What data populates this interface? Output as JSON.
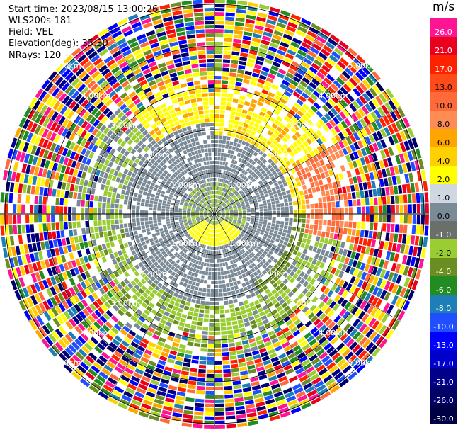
{
  "header": {
    "start_time": "Start time: 2023/08/15 13:00:26",
    "station": "WLS200s-181",
    "field": "Field: VEL",
    "elevation": "Elevation(deg): 35.30",
    "nrays": "NRays: 120"
  },
  "colorbar": {
    "unit": "m/s",
    "entries": [
      {
        "label": "26.0",
        "color": "#ff1493"
      },
      {
        "label": "21.0",
        "color": "#e8001e"
      },
      {
        "label": "17.0",
        "color": "#ff2200"
      },
      {
        "label": "13.0",
        "color": "#ff4a1a"
      },
      {
        "label": "10.0",
        "color": "#ff6a3a"
      },
      {
        "label": "8.0",
        "color": "#ff8c55"
      },
      {
        "label": "6.0",
        "color": "#ffa500"
      },
      {
        "label": "4.0",
        "color": "#ffd000"
      },
      {
        "label": "2.0",
        "color": "#ffff00"
      },
      {
        "label": "1.0",
        "color": "#cfd8e0"
      },
      {
        "label": "0.0",
        "color": "#7a8a96"
      },
      {
        "label": "-1.0",
        "color": "#6a6f6a"
      },
      {
        "label": "-2.0",
        "color": "#9acd32"
      },
      {
        "label": "-4.0",
        "color": "#6b8e23"
      },
      {
        "label": "-6.0",
        "color": "#228b22"
      },
      {
        "label": "-8.0",
        "color": "#1e7fb8"
      },
      {
        "label": "-10.0",
        "color": "#1f4fff"
      },
      {
        "label": "-13.0",
        "color": "#0000ff"
      },
      {
        "label": "-17.0",
        "color": "#0000cd"
      },
      {
        "label": "-21.0",
        "color": "#00008b"
      },
      {
        "label": "-26.0",
        "color": "#000066"
      },
      {
        "label": "-30.0",
        "color": "#000044"
      }
    ]
  },
  "range_rings": {
    "unit_label_suffix": "km",
    "labels": [
      "1.00km",
      "2.00km",
      "3.00km",
      "4.00km",
      "5.00km"
    ]
  }
}
